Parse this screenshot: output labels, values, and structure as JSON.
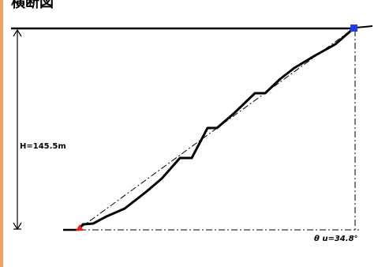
{
  "title": "横断図",
  "height_label": "H=145.5m",
  "angle_label": "θ u=34.8°",
  "colors": {
    "accent_bar": "#f0a060",
    "profile": "#000000",
    "top_marker": "#1a3cff",
    "bottom_marker": "#ff1a1a"
  }
}
